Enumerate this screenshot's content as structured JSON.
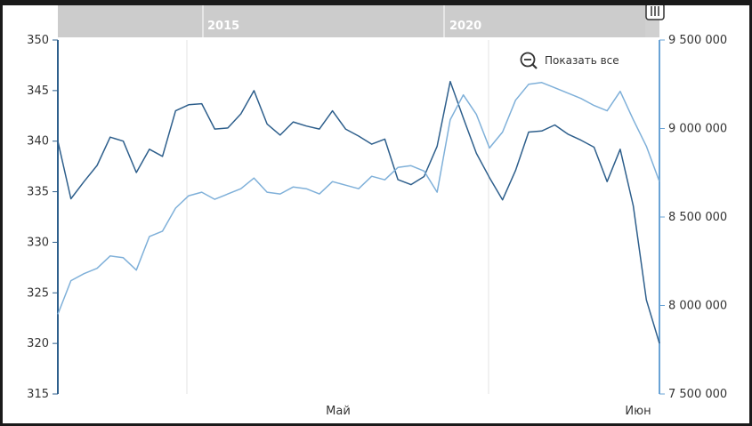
{
  "reset_zoom": {
    "label": "Показать все",
    "icon": "zoom-out-icon"
  },
  "scroll_handle_icon": "drag-handle-icon",
  "navigator": {
    "labels": [
      "2015",
      "2020"
    ]
  },
  "colors": {
    "series_dark": "#2e5f8c",
    "series_light": "#7fb0d9",
    "axis_left": "#2e5f8c",
    "axis_right": "#6aa3d5",
    "navigator_bg": "#d0d0d0"
  },
  "chart_data": {
    "type": "line",
    "x_ticks": [
      "Май",
      "Июн"
    ],
    "y_left": {
      "ticks": [
        "350",
        "345",
        "340",
        "335",
        "330",
        "325",
        "320",
        "315"
      ],
      "range": [
        315,
        350
      ]
    },
    "y_right": {
      "ticks": [
        "9 500 000",
        "9 000 000",
        "8 500 000",
        "8 000 000",
        "7 500 000"
      ],
      "range": [
        7500000,
        9500000
      ]
    },
    "grid": true,
    "series": [
      {
        "axis": "left",
        "color": "#2e5f8c",
        "values": [
          340,
          334.3,
          336,
          337.6,
          340.4,
          340,
          336.9,
          339.2,
          338.5,
          343,
          343.6,
          343.7,
          341.2,
          341.3,
          342.7,
          345,
          341.7,
          340.6,
          341.9,
          341.5,
          341.2,
          343,
          341.2,
          340.5,
          339.7,
          340.2,
          336.2,
          335.7,
          336.5,
          339.5,
          345.9,
          342.3,
          338.8,
          336.4,
          334.2,
          337.1,
          340.9,
          341,
          341.6,
          340.7,
          340.1,
          339.4,
          336,
          339.2,
          333.6,
          324.3,
          320
        ]
      },
      {
        "axis": "right",
        "color": "#7fb0d9",
        "values": [
          7950000,
          8140000,
          8180000,
          8210000,
          8280000,
          8270000,
          8200000,
          8390000,
          8420000,
          8550000,
          8620000,
          8640000,
          8600000,
          8630000,
          8660000,
          8720000,
          8640000,
          8630000,
          8670000,
          8660000,
          8630000,
          8700000,
          8680000,
          8660000,
          8730000,
          8710000,
          8780000,
          8790000,
          8760000,
          8640000,
          9050000,
          9190000,
          9080000,
          8890000,
          8980000,
          9160000,
          9250000,
          9260000,
          9230000,
          9200000,
          9170000,
          9130000,
          9100000,
          9210000,
          9050000,
          8900000,
          8700000
        ]
      }
    ]
  }
}
